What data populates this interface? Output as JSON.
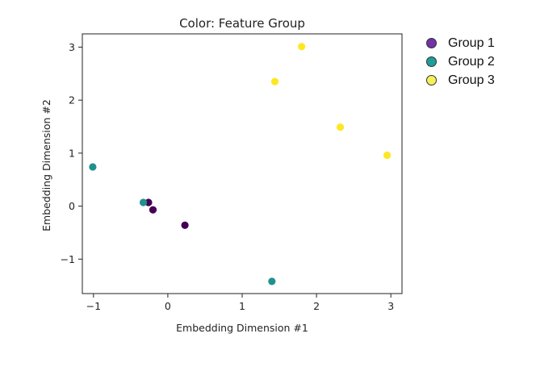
{
  "chart_data": {
    "type": "scatter",
    "title": "Color: Feature Group",
    "xlabel": "Embedding Dimension #1",
    "ylabel": "Embedding Dimension #2",
    "xlim": [
      -1.15,
      3.15
    ],
    "ylim": [
      -1.65,
      3.25
    ],
    "xticks": [
      -1,
      0,
      1,
      2,
      3
    ],
    "yticks": [
      -1,
      0,
      1,
      2,
      3
    ],
    "xtick_labels": [
      "−1",
      "0",
      "1",
      "2",
      "3"
    ],
    "ytick_labels": [
      "−1",
      "0",
      "1",
      "2",
      "3"
    ],
    "grid": false,
    "legend_position": "outside-right",
    "series": [
      {
        "name": "Group 1",
        "color": "#440154",
        "legend_color": "#7033a8",
        "points": [
          {
            "x": -0.26,
            "y": 0.07
          },
          {
            "x": -0.2,
            "y": -0.07
          },
          {
            "x": 0.23,
            "y": -0.36
          }
        ]
      },
      {
        "name": "Group 2",
        "color": "#21918c",
        "legend_color": "#1f9e99",
        "points": [
          {
            "x": -1.01,
            "y": 0.74
          },
          {
            "x": -0.33,
            "y": 0.07
          },
          {
            "x": 1.4,
            "y": -1.42
          }
        ]
      },
      {
        "name": "Group 3",
        "color": "#fde725",
        "legend_color": "#f4f15a",
        "points": [
          {
            "x": 1.8,
            "y": 3.01
          },
          {
            "x": 1.44,
            "y": 2.35
          },
          {
            "x": 2.32,
            "y": 1.49
          },
          {
            "x": 2.95,
            "y": 0.96
          }
        ]
      }
    ]
  }
}
